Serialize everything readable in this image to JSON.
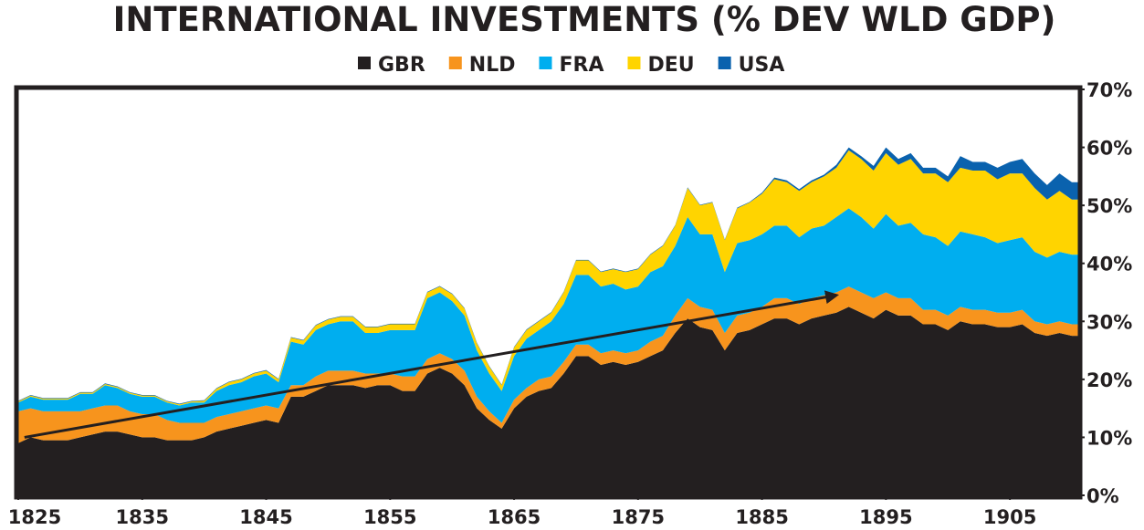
{
  "chart_data": {
    "type": "stacked_area",
    "title": "INTERNATIONAL INVESTMENTS (% DEV WLD GDP)",
    "x": [
      1825,
      1826,
      1827,
      1828,
      1829,
      1830,
      1831,
      1832,
      1833,
      1834,
      1835,
      1836,
      1837,
      1838,
      1839,
      1840,
      1841,
      1842,
      1843,
      1844,
      1845,
      1846,
      1847,
      1848,
      1849,
      1850,
      1851,
      1852,
      1853,
      1854,
      1855,
      1856,
      1857,
      1858,
      1859,
      1860,
      1861,
      1862,
      1863,
      1864,
      1865,
      1866,
      1867,
      1868,
      1869,
      1870,
      1871,
      1872,
      1873,
      1874,
      1875,
      1876,
      1877,
      1878,
      1879,
      1880,
      1881,
      1882,
      1883,
      1884,
      1885,
      1886,
      1887,
      1888,
      1889,
      1890,
      1891,
      1892,
      1893,
      1894,
      1895,
      1896,
      1897,
      1898,
      1899,
      1900,
      1901,
      1902,
      1903,
      1904,
      1905,
      1906,
      1907,
      1908,
      1909,
      1910
    ],
    "series": [
      {
        "name": "GBR",
        "color": "#231f20",
        "values": [
          9,
          10,
          9.5,
          9.5,
          9.5,
          10,
          10.5,
          11,
          11,
          10.5,
          10,
          10,
          9.5,
          9.5,
          9.5,
          10,
          11,
          11.5,
          12,
          12.5,
          13,
          12.5,
          17,
          17,
          18,
          19,
          19,
          19,
          18.5,
          19,
          19,
          18,
          18,
          21,
          22,
          21,
          19,
          15,
          13,
          11.5,
          15,
          17,
          18,
          18.5,
          21,
          24,
          24,
          22.5,
          23,
          22.5,
          23,
          24,
          25,
          28,
          30.5,
          29,
          28.5,
          25,
          28,
          28.5,
          29.5,
          30.5,
          30.5,
          29.5,
          30.5,
          31,
          31.5,
          32.5,
          31.5,
          30.5,
          32,
          31,
          31,
          29.5,
          29.5,
          28.5,
          30,
          29.5,
          29.5,
          29,
          29,
          29.5,
          28,
          27.5,
          28,
          27.5
        ]
      },
      {
        "name": "NLD",
        "color": "#f7941d",
        "values": [
          5.5,
          5,
          5,
          5,
          5,
          4.5,
          4.5,
          4.5,
          4.5,
          4,
          4,
          4,
          3.5,
          3,
          3,
          2.5,
          2.5,
          2.5,
          2.5,
          2.5,
          2.5,
          2.5,
          2,
          2,
          2.5,
          2.5,
          2.5,
          2.5,
          2.5,
          2,
          2,
          2.5,
          2.5,
          2.5,
          2.5,
          2.5,
          2.5,
          2,
          1.5,
          1,
          1.5,
          1.5,
          2,
          2,
          2,
          2,
          2,
          2,
          2,
          2,
          2,
          2.5,
          2.5,
          3,
          3.5,
          3.5,
          3.5,
          3,
          3,
          3,
          3,
          3.5,
          3.5,
          3.5,
          3.5,
          3.5,
          3.5,
          3.5,
          3.5,
          3.5,
          3,
          3,
          3,
          2.5,
          2.5,
          2.5,
          2.5,
          2.5,
          2.5,
          2.5,
          2.5,
          2.5,
          2,
          2,
          2,
          2
        ]
      },
      {
        "name": "FRA",
        "color": "#00aeef",
        "values": [
          1.5,
          2,
          2,
          2,
          2,
          3,
          2.5,
          3.5,
          3,
          3,
          3,
          3,
          3,
          3,
          3.5,
          3.5,
          4.5,
          5,
          5,
          5.5,
          5.5,
          4.5,
          7.5,
          7,
          8,
          8,
          8.5,
          8.5,
          7,
          7,
          7.5,
          8,
          8,
          10.5,
          10.5,
          10,
          9.5,
          8,
          6.5,
          5.5,
          7.5,
          8.5,
          8.5,
          9.5,
          10,
          12,
          12,
          11.5,
          11.5,
          11,
          11,
          12,
          12,
          12,
          14,
          12.5,
          13,
          10.5,
          12.5,
          12.5,
          12.5,
          12.5,
          12.5,
          11.5,
          12,
          12,
          13,
          13.5,
          13,
          12,
          13.5,
          12.5,
          13,
          13,
          12.5,
          12,
          13,
          13,
          12.5,
          12,
          12.5,
          12.5,
          12,
          11.5,
          12,
          12
        ]
      },
      {
        "name": "DEU",
        "color": "#ffd400",
        "values": [
          0.2,
          0.2,
          0.2,
          0.2,
          0.2,
          0.2,
          0.2,
          0.2,
          0.2,
          0.2,
          0.2,
          0.2,
          0.2,
          0.2,
          0.2,
          0.3,
          0.4,
          0.5,
          0.5,
          0.5,
          0.5,
          0.5,
          0.7,
          0.7,
          0.8,
          0.8,
          0.8,
          0.8,
          1,
          1,
          1,
          1,
          1,
          1,
          1,
          1.2,
          1.2,
          1.2,
          1.2,
          1,
          1.5,
          1.5,
          1.5,
          1.5,
          2,
          2.5,
          2.5,
          2.5,
          2.5,
          3,
          3,
          3,
          3.5,
          3.5,
          5,
          5,
          5.5,
          5.5,
          6,
          6.5,
          7,
          8,
          7.5,
          8,
          8,
          8.5,
          8.5,
          10,
          10,
          10,
          10.5,
          10.5,
          11,
          10.5,
          11,
          11,
          11,
          11,
          11.5,
          11,
          11.5,
          11,
          11,
          10,
          10.5,
          9.5
        ]
      },
      {
        "name": "USA",
        "color": "#0a62ae",
        "values": [
          0.1,
          0.1,
          0.1,
          0.1,
          0.1,
          0.1,
          0.1,
          0.1,
          0.1,
          0.1,
          0.1,
          0.1,
          0.1,
          0.1,
          0.1,
          0.1,
          0.1,
          0.1,
          0.1,
          0.1,
          0.1,
          0.1,
          0.1,
          0.1,
          0.1,
          0.1,
          0.1,
          0.1,
          0.1,
          0.1,
          0.1,
          0.1,
          0.1,
          0.1,
          0.1,
          0.1,
          0.1,
          0.1,
          0.1,
          0.1,
          0.1,
          0.1,
          0.1,
          0.1,
          0.1,
          0.1,
          0.1,
          0.1,
          0.1,
          0.1,
          0.1,
          0.1,
          0.1,
          0.1,
          0.1,
          0.1,
          0.1,
          0.1,
          0.1,
          0.1,
          0.2,
          0.3,
          0.3,
          0.3,
          0.3,
          0.3,
          0.5,
          0.5,
          0.5,
          0.8,
          1,
          1,
          1,
          1,
          1,
          1,
          2,
          1.5,
          1.5,
          2,
          2,
          2.5,
          2.5,
          2.5,
          3,
          3
        ]
      }
    ],
    "xlim": [
      1825,
      1910
    ],
    "xticks": [
      1825,
      1835,
      1845,
      1855,
      1865,
      1875,
      1885,
      1895,
      1905
    ],
    "ylim": [
      0,
      70
    ],
    "yticks": [
      {
        "value": 0,
        "label": "0%"
      },
      {
        "value": 10,
        "label": "10%"
      },
      {
        "value": 20,
        "label": "20%"
      },
      {
        "value": 30,
        "label": "30%"
      },
      {
        "value": 40,
        "label": "40%"
      },
      {
        "value": 50,
        "label": "50%"
      },
      {
        "value": 60,
        "label": "60%"
      },
      {
        "value": 70,
        "label": "70%"
      }
    ],
    "trend_arrow": {
      "x": [
        1825.5,
        1891
      ],
      "y": [
        10,
        34.5
      ]
    }
  }
}
